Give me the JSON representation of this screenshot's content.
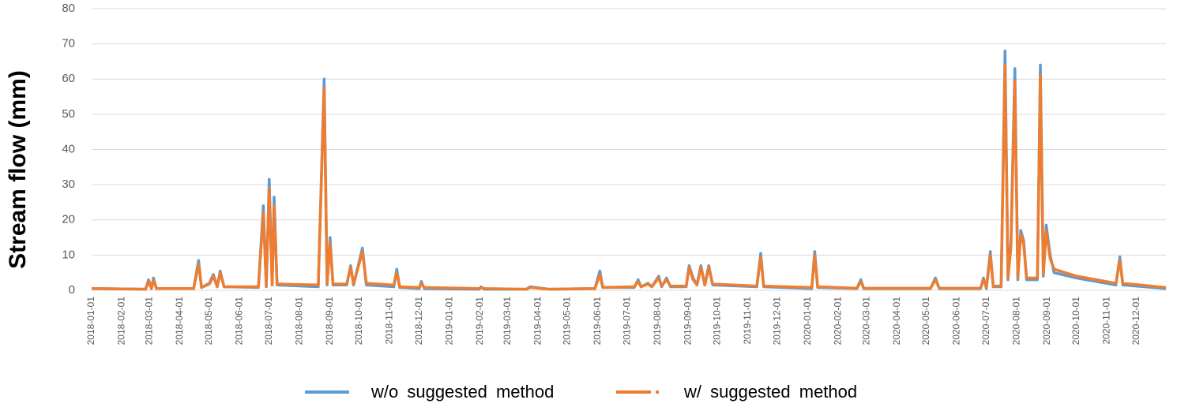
{
  "chart_data": {
    "type": "line",
    "y_label": "Stream flow (mm)",
    "x": [
      "2018-01-01",
      "2018-02-25",
      "2018-02-28",
      "2018-03-03",
      "2018-03-05",
      "2018-03-08",
      "2018-04-15",
      "2018-04-20",
      "2018-04-23",
      "2018-05-01",
      "2018-05-05",
      "2018-05-09",
      "2018-05-12",
      "2018-05-16",
      "2018-06-20",
      "2018-06-25",
      "2018-06-28",
      "2018-07-01",
      "2018-07-04",
      "2018-07-06",
      "2018-07-09",
      "2018-08-20",
      "2018-08-26",
      "2018-08-29",
      "2018-09-01",
      "2018-09-04",
      "2018-09-18",
      "2018-09-22",
      "2018-09-25",
      "2018-10-04",
      "2018-10-08",
      "2018-11-05",
      "2018-11-08",
      "2018-11-11",
      "2018-12-01",
      "2018-12-03",
      "2018-12-06",
      "2019-01-31",
      "2019-02-02",
      "2019-02-05",
      "2019-03-20",
      "2019-03-24",
      "2019-04-12",
      "2019-05-29",
      "2019-06-03",
      "2019-06-06",
      "2019-07-08",
      "2019-07-12",
      "2019-07-15",
      "2019-07-22",
      "2019-07-26",
      "2019-08-02",
      "2019-08-05",
      "2019-08-10",
      "2019-08-14",
      "2019-08-30",
      "2019-09-02",
      "2019-09-06",
      "2019-09-10",
      "2019-09-14",
      "2019-09-18",
      "2019-09-22",
      "2019-09-26",
      "2019-11-10",
      "2019-11-14",
      "2019-11-17",
      "2020-01-05",
      "2020-01-08",
      "2020-01-11",
      "2020-02-20",
      "2020-02-24",
      "2020-02-27",
      "2020-05-05",
      "2020-05-10",
      "2020-05-14",
      "2020-06-25",
      "2020-06-28",
      "2020-07-01",
      "2020-07-05",
      "2020-07-08",
      "2020-07-16",
      "2020-07-20",
      "2020-07-23",
      "2020-07-26",
      "2020-07-30",
      "2020-08-02",
      "2020-08-05",
      "2020-08-08",
      "2020-08-11",
      "2020-08-22",
      "2020-08-25",
      "2020-08-28",
      "2020-08-31",
      "2020-09-04",
      "2020-09-08",
      "2020-10-01",
      "2020-11-10",
      "2020-11-14",
      "2020-11-17",
      "2020-12-31"
    ],
    "series": [
      {
        "name": "w/o suggested method",
        "color": "#5b9bd5",
        "values": [
          0.5,
          0.3,
          3,
          0.5,
          3.5,
          0.5,
          0.5,
          8.5,
          0.8,
          2,
          4.5,
          1,
          5.5,
          1,
          0.8,
          24,
          1,
          31.5,
          1.5,
          26.5,
          1.5,
          1,
          60,
          1.5,
          15,
          1.5,
          1.5,
          7,
          1.5,
          12,
          1.5,
          1,
          6,
          0.8,
          0.5,
          2.5,
          0.5,
          0.3,
          1,
          0.3,
          0.3,
          1,
          0.3,
          0.5,
          5.5,
          0.8,
          0.8,
          3,
          1,
          2,
          1,
          4,
          1,
          3.5,
          1,
          1,
          7,
          3.5,
          1.5,
          7,
          1.5,
          7,
          1.5,
          1,
          10.5,
          1,
          0.5,
          11,
          0.8,
          0.5,
          3,
          0.5,
          0.5,
          3.5,
          0.5,
          0.5,
          3.5,
          0.5,
          11,
          1,
          1,
          68,
          3,
          14,
          63,
          3,
          17,
          14,
          3,
          3,
          64,
          4,
          18.5,
          10,
          5,
          3.5,
          1.5,
          9.5,
          1.5,
          0.5
        ]
      },
      {
        "name": "w/ suggested method",
        "color": "#ed7d31",
        "values": [
          0.5,
          0.3,
          2.5,
          0.5,
          3,
          0.5,
          0.5,
          7.5,
          0.8,
          1.8,
          4,
          1,
          5,
          1,
          1,
          22,
          1.2,
          29,
          1.5,
          24,
          1.8,
          1.5,
          57.5,
          2,
          13.5,
          1.8,
          1.8,
          6.5,
          1.8,
          11,
          2,
          1.5,
          5,
          1,
          0.8,
          2,
          0.8,
          0.5,
          0.8,
          0.5,
          0.3,
          0.8,
          0.3,
          0.5,
          4.5,
          0.8,
          1,
          2.5,
          1,
          1.8,
          1,
          3.5,
          1.2,
          3,
          1.2,
          1.2,
          6.5,
          3,
          1.5,
          6.5,
          1.5,
          6.5,
          1.8,
          1.2,
          9.5,
          1.2,
          0.8,
          10,
          1,
          0.6,
          2.5,
          0.6,
          0.6,
          3,
          0.6,
          0.6,
          3,
          0.8,
          10,
          1.2,
          1.2,
          64,
          3.5,
          12,
          59.5,
          3.5,
          16,
          13,
          3.5,
          3.5,
          61,
          4.5,
          17,
          9,
          6,
          4,
          2,
          8.5,
          2,
          0.8
        ]
      }
    ],
    "xlim": [
      "2018-01-01",
      "2020-12-31"
    ],
    "xticks": [
      "2018-01-01",
      "2018-02-01",
      "2018-03-01",
      "2018-04-01",
      "2018-05-01",
      "2018-06-01",
      "2018-07-01",
      "2018-08-01",
      "2018-09-01",
      "2018-10-01",
      "2018-11-01",
      "2018-12-01",
      "2019-01-01",
      "2019-02-01",
      "2019-03-01",
      "2019-04-01",
      "2019-05-01",
      "2019-06-01",
      "2019-07-01",
      "2019-08-01",
      "2019-09-01",
      "2019-10-01",
      "2019-11-01",
      "2019-12-01",
      "2020-01-01",
      "2020-02-01",
      "2020-03-01",
      "2020-04-01",
      "2020-05-01",
      "2020-06-01",
      "2020-07-01",
      "2020-08-01",
      "2020-09-01",
      "2020-10-01",
      "2020-11-01",
      "2020-12-01"
    ],
    "ylim": [
      0,
      80
    ],
    "yticks": [
      0,
      10,
      20,
      30,
      40,
      50,
      60,
      70,
      80
    ],
    "grid": true
  }
}
